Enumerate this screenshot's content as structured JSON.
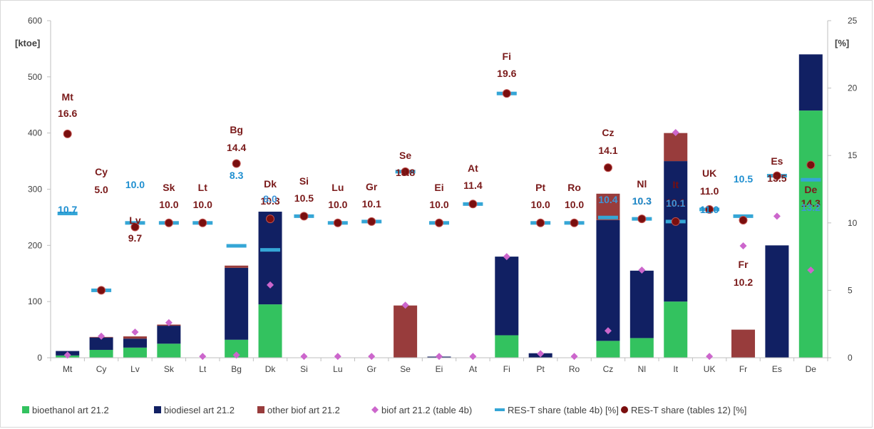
{
  "chart_data": {
    "type": "bar",
    "left_axis_label": "[ktoe]",
    "right_axis_label": "[%]",
    "ylim_left": [
      0,
      600
    ],
    "ylim_right": [
      0,
      25
    ],
    "yticks_left": [
      0,
      100,
      200,
      300,
      400,
      500,
      600
    ],
    "yticks_right": [
      0,
      5,
      10,
      15,
      20,
      25
    ],
    "categories": [
      "Mt",
      "Cy",
      "Lv",
      "Sk",
      "Lt",
      "Bg",
      "Dk",
      "Si",
      "Lu",
      "Gr",
      "Se",
      "Ei",
      "At",
      "Fi",
      "Pt",
      "Ro",
      "Cz",
      "Nl",
      "It",
      "UK",
      "Fr",
      "Es",
      "De"
    ],
    "series": [
      {
        "name": "bioethanol art 21.2",
        "kind": "bar",
        "axis": "left",
        "values": [
          4,
          14,
          18,
          25,
          0,
          32,
          95,
          0,
          0,
          0,
          0,
          0,
          0,
          40,
          0,
          0,
          30,
          35,
          100,
          0,
          0,
          0,
          440
        ]
      },
      {
        "name": "biodiesel art 21.2",
        "kind": "bar",
        "axis": "left",
        "values": [
          8,
          22,
          16,
          32,
          0,
          128,
          165,
          0,
          0,
          0,
          0,
          2,
          0,
          140,
          8,
          0,
          215,
          120,
          250,
          0,
          0,
          200,
          100
        ]
      },
      {
        "name": "other biof art 21.2",
        "kind": "bar",
        "axis": "left",
        "values": [
          0,
          1,
          4,
          2,
          0,
          4,
          0,
          0,
          0,
          0,
          93,
          0,
          0,
          0,
          0,
          0,
          47,
          0,
          50,
          0,
          50,
          0,
          0
        ]
      },
      {
        "name": "biof art 21.2 (table 4b)",
        "kind": "marker",
        "axis": "right",
        "values": [
          0.2,
          1.6,
          1.9,
          2.6,
          0.1,
          0.2,
          5.4,
          0.1,
          0.1,
          0.1,
          3.9,
          0.1,
          0.1,
          7.5,
          0.3,
          0.1,
          2.0,
          6.5,
          16.7,
          0.1,
          8.3,
          10.5,
          6.5
        ]
      },
      {
        "name": "RES-T share (table 4b) [%]",
        "kind": "dash",
        "axis": "right",
        "values": [
          10.7,
          5.0,
          10.0,
          10.0,
          10.0,
          8.3,
          8.0,
          10.5,
          10.0,
          10.1,
          13.8,
          10.0,
          11.4,
          19.6,
          10.0,
          10.0,
          10.4,
          10.3,
          10.1,
          11.0,
          10.5,
          13.5,
          13.2
        ]
      },
      {
        "name": "RES-T share (tables 12) [%]",
        "kind": "dot",
        "axis": "right",
        "values": [
          16.6,
          5.0,
          9.7,
          10.0,
          10.0,
          14.4,
          10.3,
          10.5,
          10.0,
          10.1,
          13.8,
          10.0,
          11.4,
          19.6,
          10.0,
          10.0,
          14.1,
          10.3,
          10.1,
          11.0,
          10.2,
          13.5,
          14.3
        ]
      }
    ],
    "annotations_dark": [
      {
        "country": "Mt",
        "value": "16.6"
      },
      {
        "country": "Cy",
        "value": "5.0"
      },
      {
        "country": "Lv",
        "value": "9.7"
      },
      {
        "country": "Sk",
        "value": "10.0"
      },
      {
        "country": "Lt",
        "value": "10.0"
      },
      {
        "country": "Bg",
        "value": "14.4"
      },
      {
        "country": "Dk",
        "value": "10.3"
      },
      {
        "country": "Si",
        "value": "10.5"
      },
      {
        "country": "Lu",
        "value": "10.0"
      },
      {
        "country": "Gr",
        "value": "10.1"
      },
      {
        "country": "Se",
        "value": "13.8"
      },
      {
        "country": "Ei",
        "value": "10.0"
      },
      {
        "country": "At",
        "value": "11.4"
      },
      {
        "country": "Fi",
        "value": "19.6"
      },
      {
        "country": "Pt",
        "value": "10.0"
      },
      {
        "country": "Ro",
        "value": "10.0"
      },
      {
        "country": "Cz",
        "value": "14.1"
      },
      {
        "country": "Nl",
        "value": "10.3"
      },
      {
        "country": "It",
        "value": "10.1"
      },
      {
        "country": "UK",
        "value": "11.0"
      },
      {
        "country": "Fr",
        "value": "10.2"
      },
      {
        "country": "Es",
        "value": "13.5"
      },
      {
        "country": "De",
        "value": "14.3"
      }
    ],
    "annotations_blue": [
      {
        "country": "Mt",
        "value": "10.7"
      },
      {
        "country": "Lv",
        "value": "10.0"
      },
      {
        "country": "Bg",
        "value": "8.3"
      },
      {
        "country": "Dk",
        "value": "8.0"
      },
      {
        "country": "Cz",
        "value": "10.4"
      },
      {
        "country": "Nl",
        "value": "10.3"
      },
      {
        "country": "It",
        "value": "10.1"
      },
      {
        "country": "UK",
        "value": "11.0"
      },
      {
        "country": "Fr",
        "value": "10.5"
      },
      {
        "country": "De",
        "value": "13.2"
      }
    ],
    "legend_position": "bottom",
    "grid": false
  },
  "colors": {
    "bioethanol": "#33c25f",
    "biodiesel": "#112063",
    "other": "#983c3c",
    "marker": "#cc66cc",
    "dash": "#35a6d6",
    "dot": "#7a0e0e",
    "label_dark": "#7a1a1a",
    "label_blue": "#1f8fd0",
    "label_inside": "#1f8fd0"
  }
}
